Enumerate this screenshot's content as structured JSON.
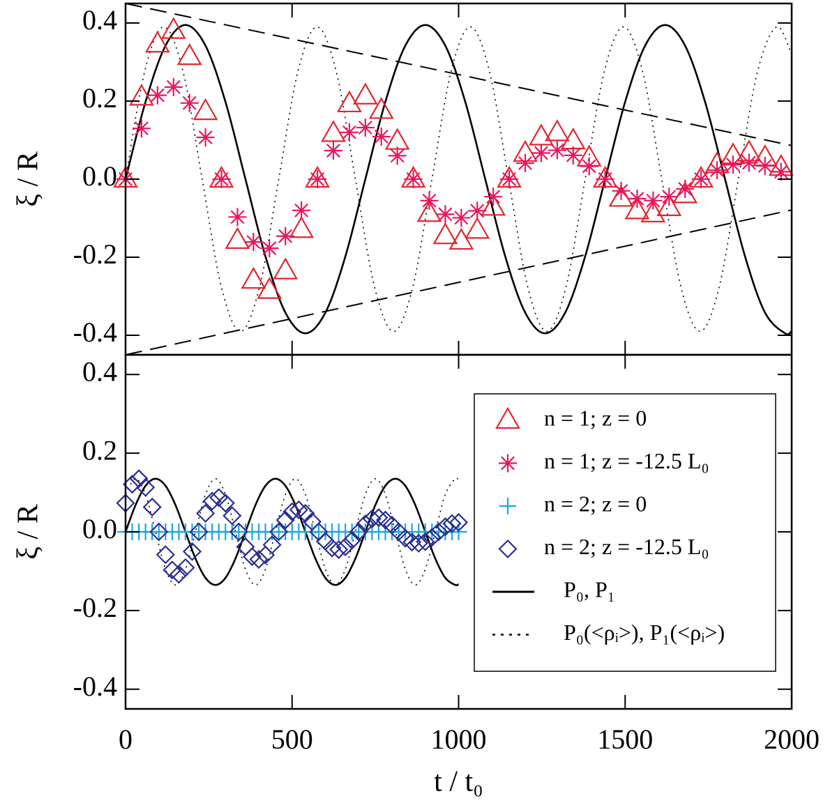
{
  "chart_data": [
    {
      "type": "line",
      "ylabel": "ξ / R",
      "xlim": [
        0,
        2000
      ],
      "ylim": [
        -0.45,
        0.45
      ],
      "xticks": [
        0,
        500,
        1000,
        1500,
        2000
      ],
      "show_xtick_labels": false,
      "yticks": [
        -0.4,
        -0.2,
        {
          "value": 0,
          "label": "0.0"
        },
        0.2,
        0.4
      ],
      "series": [
        {
          "name": "n = 1; z = 0",
          "marker": "triangle",
          "color": "#e3262b",
          "x": [
            0,
            48,
            96,
            144,
            192,
            240,
            288,
            336,
            384,
            432,
            480,
            528,
            576,
            624,
            672,
            720,
            768,
            816,
            864,
            912,
            960,
            1008,
            1056,
            1104,
            1152,
            1200,
            1248,
            1296,
            1344,
            1392,
            1440,
            1488,
            1536,
            1584,
            1632,
            1680,
            1728,
            1776,
            1824,
            1872,
            1920,
            1968
          ],
          "values": [
            0,
            0.21,
            0.346,
            0.381,
            0.314,
            0.173,
            0,
            -0.157,
            -0.259,
            -0.285,
            -0.235,
            -0.129,
            0,
            0.117,
            0.193,
            0.213,
            0.176,
            0.097,
            0,
            -0.088,
            -0.145,
            -0.159,
            -0.131,
            -0.072,
            0,
            0.066,
            0.108,
            0.119,
            0.098,
            0.054,
            0,
            -0.049,
            -0.081,
            -0.089,
            -0.073,
            -0.04,
            0,
            0.037,
            0.06,
            0.067,
            0.055,
            0.03
          ]
        },
        {
          "name": "n = 1; z = -12.5 L₀",
          "marker": "asterisk",
          "color": "#e8175d",
          "x": [
            0,
            48,
            96,
            144,
            192,
            240,
            288,
            336,
            384,
            432,
            480,
            528,
            576,
            624,
            672,
            720,
            768,
            816,
            864,
            912,
            960,
            1008,
            1056,
            1104,
            1152,
            1200,
            1248,
            1296,
            1344,
            1392,
            1440,
            1488,
            1536,
            1584,
            1632,
            1680,
            1728,
            1776,
            1824,
            1872,
            1920,
            1968
          ],
          "values": [
            0,
            0.13,
            0.215,
            0.236,
            0.195,
            0.107,
            0,
            -0.097,
            -0.161,
            -0.177,
            -0.146,
            -0.08,
            0,
            0.073,
            0.12,
            0.132,
            0.109,
            0.06,
            0,
            -0.055,
            -0.09,
            -0.099,
            -0.081,
            -0.045,
            0,
            0.041,
            0.067,
            0.074,
            0.061,
            0.033,
            0,
            -0.03,
            -0.05,
            -0.055,
            -0.045,
            -0.025,
            0,
            0.023,
            0.037,
            0.042,
            0.034,
            0.019
          ]
        },
        {
          "line_style": "solid",
          "color": "#000000",
          "x": [
            0,
            60,
            120,
            180,
            240,
            300,
            360,
            420,
            480,
            540,
            600,
            660,
            720,
            780,
            840,
            900,
            960,
            1020,
            1080,
            1140,
            1200,
            1260,
            1320,
            1380,
            1440,
            1500,
            1560,
            1620,
            1680,
            1740,
            1800,
            1860,
            1920,
            1980,
            2000
          ],
          "values": [
            0,
            0.198,
            0.342,
            0.395,
            0.342,
            0.198,
            0,
            -0.198,
            -0.342,
            -0.395,
            -0.342,
            -0.198,
            0,
            0.198,
            0.342,
            0.395,
            0.342,
            0.198,
            0,
            -0.198,
            -0.342,
            -0.395,
            -0.342,
            -0.198,
            0,
            0.198,
            0.342,
            0.395,
            0.342,
            0.198,
            0,
            -0.198,
            -0.342,
            -0.395,
            -0.389
          ]
        },
        {
          "line_style": "dotted",
          "color": "#000000",
          "x": [
            0,
            57.5,
            115,
            172.5,
            230,
            287.5,
            345,
            402.5,
            460,
            517.5,
            575,
            632.5,
            690,
            747.5,
            805,
            862.5,
            920,
            977.5,
            1035,
            1092.5,
            1150,
            1207.5,
            1265,
            1322.5,
            1380,
            1437.5,
            1495,
            1552.5,
            1610,
            1667.5,
            1725,
            1782.5,
            1840,
            1897.5,
            1955,
            2000
          ],
          "values": [
            0,
            0.276,
            0.39,
            0.276,
            0,
            -0.276,
            -0.39,
            -0.276,
            0,
            0.276,
            0.39,
            0.276,
            0,
            -0.276,
            -0.39,
            -0.276,
            0,
            0.276,
            0.39,
            0.276,
            0,
            -0.276,
            -0.39,
            -0.276,
            0,
            0.276,
            0.39,
            0.276,
            0,
            -0.276,
            -0.39,
            -0.276,
            0,
            0.276,
            0.39,
            0.319
          ]
        },
        {
          "line_style": "dashed",
          "color": "#000000",
          "x": [
            0,
            2000
          ],
          "values": [
            0.45,
            0.086
          ]
        },
        {
          "line_style": "dashed",
          "color": "#000000",
          "x": [
            0,
            2000
          ],
          "values": [
            -0.45,
            -0.079
          ]
        }
      ]
    },
    {
      "type": "line",
      "ylabel": "ξ / R",
      "xlabel": "t / t₀",
      "xlim": [
        0,
        2000
      ],
      "ylim": [
        -0.45,
        0.45
      ],
      "xticks": [
        0,
        500,
        1000,
        1500,
        2000
      ],
      "show_xtick_labels": true,
      "yticks": [
        -0.4,
        -0.2,
        {
          "value": 0,
          "label": "0.0"
        },
        0.2,
        0.4
      ],
      "legend": "upper right",
      "series": [
        {
          "name": "n = 2; z = 0",
          "marker": "plus",
          "color": "#1ba7e1",
          "x": [
            0,
            20,
            40,
            60,
            80,
            100,
            120,
            140,
            160,
            180,
            200,
            220,
            240,
            260,
            280,
            300,
            320,
            340,
            360,
            380,
            400,
            420,
            440,
            460,
            480,
            500,
            520,
            540,
            560,
            580,
            600,
            620,
            640,
            660,
            680,
            700,
            720,
            740,
            760,
            780,
            800,
            820,
            840,
            860,
            880,
            900,
            920,
            940,
            960,
            980,
            1000
          ],
          "values": [
            0,
            0,
            0,
            0,
            0,
            0,
            0,
            0,
            0,
            0,
            0,
            0,
            0,
            0,
            0,
            0,
            0,
            0,
            0,
            0,
            0,
            0,
            0,
            0,
            0,
            0,
            0,
            0,
            0,
            0,
            0,
            0,
            0,
            0,
            0,
            0,
            0,
            0,
            0,
            0,
            0,
            0,
            0,
            0,
            0,
            0,
            0,
            0,
            0,
            0,
            0
          ]
        },
        {
          "name": "n = 2; z = -12.5 L₀",
          "marker": "diamond",
          "color": "#2b2f8f",
          "x": [
            0,
            20,
            40,
            60,
            80,
            100,
            120,
            140,
            160,
            180,
            200,
            220,
            240,
            260,
            280,
            300,
            320,
            340,
            360,
            380,
            400,
            420,
            440,
            460,
            480,
            500,
            520,
            540,
            560,
            580,
            600,
            620,
            640,
            660,
            680,
            700,
            720,
            740,
            760,
            780,
            800,
            820,
            840,
            860,
            880,
            900,
            920,
            940,
            960,
            980,
            1000
          ],
          "values": [
            0.073,
            0.121,
            0.135,
            0.113,
            0.063,
            0,
            -0.058,
            -0.097,
            -0.108,
            -0.091,
            -0.05,
            0,
            0.047,
            0.078,
            0.087,
            0.073,
            0.041,
            0,
            -0.038,
            -0.063,
            -0.07,
            -0.059,
            -0.033,
            0,
            0.03,
            0.051,
            0.056,
            0.047,
            0.026,
            0,
            -0.024,
            -0.041,
            -0.045,
            -0.038,
            -0.021,
            0,
            0.02,
            0.033,
            0.036,
            0.03,
            0.017,
            0,
            -0.016,
            -0.026,
            -0.029,
            -0.025,
            -0.014,
            0,
            0.013,
            0.021,
            0.024
          ]
        },
        {
          "name": "P₀,  P₁",
          "line_style": "solid",
          "color": "#000000",
          "x": [
            0,
            30,
            60,
            90,
            120,
            150,
            180,
            210,
            240,
            270,
            300,
            330,
            360,
            390,
            420,
            450,
            480,
            510,
            540,
            570,
            600,
            630,
            660,
            690,
            720,
            750,
            780,
            810,
            840,
            870,
            900,
            930,
            960,
            990,
            1000
          ],
          "values": [
            0,
            0.068,
            0.117,
            0.135,
            0.117,
            0.068,
            0,
            -0.068,
            -0.117,
            -0.135,
            -0.117,
            -0.068,
            0,
            0.068,
            0.117,
            0.135,
            0.117,
            0.068,
            0,
            -0.068,
            -0.117,
            -0.135,
            -0.117,
            -0.068,
            0,
            0.068,
            0.117,
            0.135,
            0.117,
            0.068,
            0,
            -0.068,
            -0.117,
            -0.135,
            -0.133
          ]
        },
        {
          "name": "P₀(<ρᵢ>), P₁(<ρᵢ>)",
          "line_style": "dotted",
          "color": "#000000",
          "x": [
            0,
            30,
            60,
            90,
            120,
            150,
            180,
            210,
            240,
            270,
            300,
            330,
            360,
            390,
            420,
            450,
            480,
            510,
            540,
            570,
            600,
            630,
            660,
            690,
            720,
            750,
            780,
            810,
            840,
            870,
            900,
            930,
            960,
            990,
            1000
          ],
          "values": [
            0.095,
            0.135,
            0.095,
            0,
            -0.095,
            -0.135,
            -0.095,
            0,
            0.095,
            0.135,
            0.095,
            0,
            -0.095,
            -0.135,
            -0.095,
            0,
            0.095,
            0.135,
            0.095,
            0,
            -0.095,
            -0.135,
            -0.095,
            0,
            0.095,
            0.135,
            0.095,
            0,
            -0.095,
            -0.135,
            -0.095,
            0,
            0.095,
            0.135,
            0.13
          ]
        }
      ]
    }
  ]
}
